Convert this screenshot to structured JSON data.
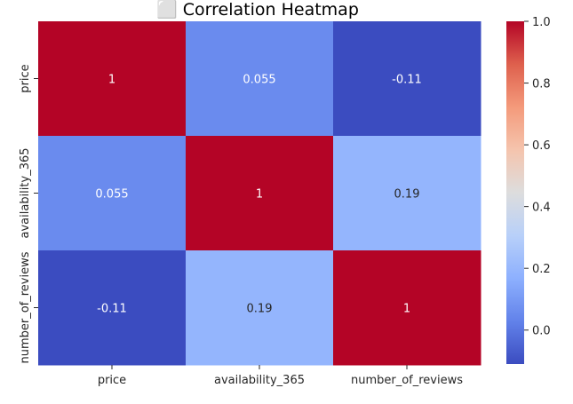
{
  "chart_data": {
    "type": "heatmap",
    "title": "⬜ Correlation Heatmap",
    "rows": [
      "price",
      "availability_365",
      "number_of_reviews"
    ],
    "columns": [
      "price",
      "availability_365",
      "number_of_reviews"
    ],
    "values": [
      [
        1,
        0.055,
        -0.11
      ],
      [
        0.055,
        1,
        0.19
      ],
      [
        -0.11,
        0.19,
        1
      ]
    ],
    "cell_labels": [
      [
        "1",
        "0.055",
        "-0.11"
      ],
      [
        "0.055",
        "1",
        "0.19"
      ],
      [
        "-0.11",
        "0.19",
        "1"
      ]
    ],
    "colormap": "coolwarm",
    "color_range": [
      -0.11,
      1
    ],
    "colorbar_ticks": [
      "0.0",
      "0.2",
      "0.4",
      "0.6",
      "0.8",
      "1.0"
    ],
    "colorbar_tick_values": [
      0.0,
      0.2,
      0.4,
      0.6,
      0.8,
      1.0
    ],
    "annot_color_light": "#ffffff",
    "annot_color_dark": "#262626"
  }
}
